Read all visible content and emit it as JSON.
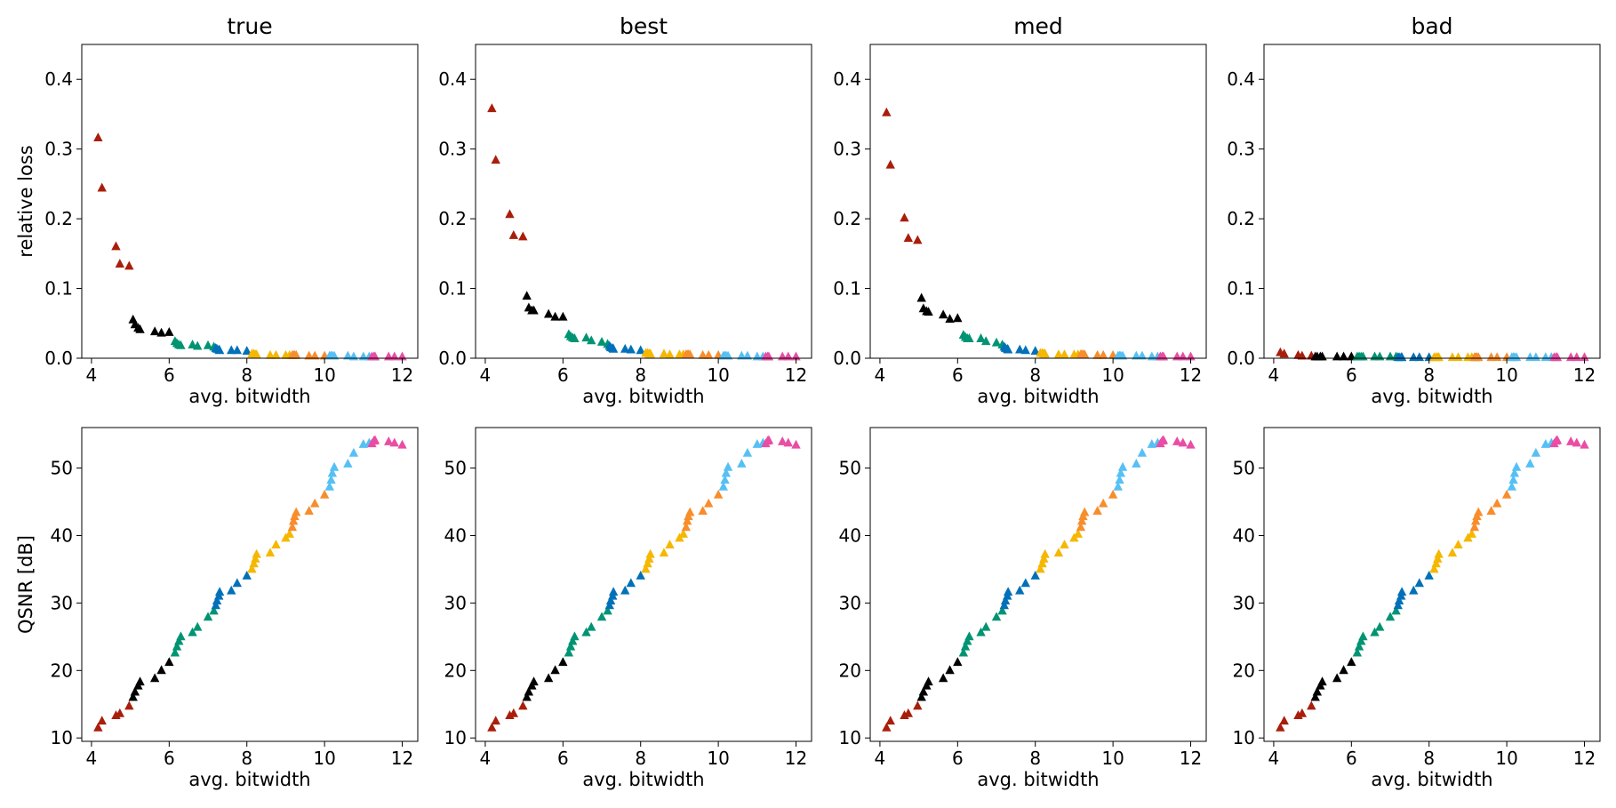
{
  "chart_data": {
    "type": "scatter",
    "marker": "triangle",
    "columns": [
      "true",
      "best",
      "med",
      "bad"
    ],
    "xlabel": "avg. bitwidth",
    "row_ylabels": [
      "relative loss",
      "QSNR [dB]"
    ],
    "xticks": [
      4,
      6,
      8,
      10,
      12
    ],
    "xlim": [
      3.75,
      12.4
    ],
    "top_ylim": [
      0,
      0.45
    ],
    "top_yticks": [
      0.0,
      0.1,
      0.2,
      0.3,
      0.4
    ],
    "bottom_ylim": [
      9.5,
      56
    ],
    "bottom_yticks": [
      10,
      20,
      30,
      40,
      50
    ],
    "groups": [
      {
        "color": "#a91e0b",
        "x": [
          4.17,
          4.27,
          4.63,
          4.73,
          4.97
        ],
        "loss": {
          "true": [
            0.316,
            0.244,
            0.16,
            0.135,
            0.132
          ],
          "best": [
            0.358,
            0.284,
            0.206,
            0.176,
            0.174
          ],
          "med": [
            0.352,
            0.277,
            0.201,
            0.172,
            0.169
          ],
          "bad": [
            0.008,
            0.006,
            0.004,
            0.003,
            0.003
          ]
        },
        "qsnr": [
          11.5,
          12.5,
          13.3,
          13.6,
          14.7
        ]
      },
      {
        "color": "#000000",
        "x": [
          5.07,
          5.12,
          5.2,
          5.25,
          5.63,
          5.8,
          6.0
        ],
        "loss": {
          "true": [
            0.055,
            0.048,
            0.043,
            0.041,
            0.038,
            0.036,
            0.037
          ],
          "best": [
            0.089,
            0.072,
            0.068,
            0.068,
            0.063,
            0.059,
            0.059
          ],
          "med": [
            0.086,
            0.071,
            0.067,
            0.066,
            0.062,
            0.056,
            0.057
          ],
          "bad": [
            0.002,
            0.002,
            0.002,
            0.002,
            0.002,
            0.002,
            0.002
          ]
        },
        "qsnr": [
          16.0,
          16.8,
          17.7,
          18.3,
          18.8,
          20.0,
          21.2
        ]
      },
      {
        "color": "#009473",
        "x": [
          6.15,
          6.2,
          6.25,
          6.3,
          6.6,
          6.73,
          7.0,
          7.15
        ],
        "loss": {
          "true": [
            0.024,
            0.021,
            0.019,
            0.018,
            0.019,
            0.017,
            0.018,
            0.016
          ],
          "best": [
            0.034,
            0.031,
            0.029,
            0.028,
            0.029,
            0.025,
            0.023,
            0.02
          ],
          "med": [
            0.033,
            0.03,
            0.028,
            0.028,
            0.028,
            0.024,
            0.022,
            0.019
          ],
          "bad": [
            0.002,
            0.002,
            0.002,
            0.002,
            0.002,
            0.002,
            0.002,
            0.002
          ]
        },
        "qsnr": [
          22.6,
          23.5,
          24.3,
          25.0,
          25.6,
          26.4,
          27.9,
          28.8
        ]
      },
      {
        "color": "#0071b8",
        "x": [
          7.2,
          7.23,
          7.28,
          7.3,
          7.6,
          7.75,
          8.0
        ],
        "loss": {
          "true": [
            0.014,
            0.013,
            0.012,
            0.011,
            0.011,
            0.011,
            0.01
          ],
          "best": [
            0.017,
            0.015,
            0.014,
            0.013,
            0.013,
            0.012,
            0.011
          ],
          "med": [
            0.016,
            0.014,
            0.013,
            0.012,
            0.012,
            0.011,
            0.01
          ],
          "bad": [
            0.001,
            0.001,
            0.001,
            0.001,
            0.001,
            0.001,
            0.001
          ]
        },
        "qsnr": [
          29.6,
          30.3,
          31.0,
          31.6,
          31.8,
          32.9,
          34.0
        ]
      },
      {
        "color": "#f5b700",
        "x": [
          8.13,
          8.18,
          8.22,
          8.25,
          8.6,
          8.75,
          9.0,
          9.1
        ],
        "loss": {
          "true": [
            0.006,
            0.006,
            0.005,
            0.005,
            0.004,
            0.004,
            0.004,
            0.004
          ],
          "best": [
            0.007,
            0.007,
            0.006,
            0.006,
            0.006,
            0.005,
            0.005,
            0.005
          ],
          "med": [
            0.007,
            0.007,
            0.006,
            0.006,
            0.005,
            0.005,
            0.005,
            0.005
          ],
          "bad": [
            0.001,
            0.001,
            0.001,
            0.001,
            0.001,
            0.001,
            0.001,
            0.001
          ]
        },
        "qsnr": [
          35.0,
          35.8,
          36.5,
          37.2,
          37.4,
          38.6,
          39.6,
          40.2
        ]
      },
      {
        "color": "#f88d2c",
        "x": [
          9.17,
          9.2,
          9.23,
          9.27,
          9.6,
          9.75,
          10.0
        ],
        "loss": {
          "true": [
            0.004,
            0.004,
            0.004,
            0.004,
            0.003,
            0.003,
            0.003
          ],
          "best": [
            0.005,
            0.005,
            0.005,
            0.005,
            0.004,
            0.004,
            0.004
          ],
          "med": [
            0.005,
            0.005,
            0.005,
            0.005,
            0.004,
            0.004,
            0.004
          ],
          "bad": [
            0.001,
            0.001,
            0.001,
            0.001,
            0.001,
            0.001,
            0.001
          ]
        },
        "qsnr": [
          41.2,
          42.1,
          42.8,
          43.4,
          43.6,
          44.7,
          46.0
        ]
      },
      {
        "color": "#56c0f5",
        "x": [
          10.13,
          10.17,
          10.2,
          10.25,
          10.6,
          10.75,
          11.0,
          11.15
        ],
        "loss": {
          "true": [
            0.003,
            0.003,
            0.003,
            0.003,
            0.003,
            0.002,
            0.002,
            0.002
          ],
          "best": [
            0.003,
            0.003,
            0.003,
            0.003,
            0.003,
            0.003,
            0.002,
            0.002
          ],
          "med": [
            0.003,
            0.003,
            0.003,
            0.003,
            0.003,
            0.003,
            0.002,
            0.002
          ],
          "bad": [
            0.001,
            0.001,
            0.001,
            0.001,
            0.001,
            0.001,
            0.001,
            0.001
          ]
        },
        "qsnr": [
          47.2,
          48.2,
          49.2,
          50.1,
          50.6,
          52.2,
          53.5,
          53.7
        ]
      },
      {
        "color": "#e94da4",
        "x": [
          11.22,
          11.27,
          11.3,
          11.65,
          11.8,
          12.0
        ],
        "loss": {
          "true": [
            0.002,
            0.002,
            0.002,
            0.002,
            0.002,
            0.002
          ],
          "best": [
            0.002,
            0.002,
            0.002,
            0.002,
            0.002,
            0.002
          ],
          "med": [
            0.002,
            0.002,
            0.002,
            0.002,
            0.002,
            0.002
          ],
          "bad": [
            0.001,
            0.001,
            0.001,
            0.001,
            0.001,
            0.001
          ]
        },
        "qsnr": [
          53.6,
          54.0,
          54.1,
          53.9,
          53.7,
          53.4
        ]
      }
    ]
  }
}
